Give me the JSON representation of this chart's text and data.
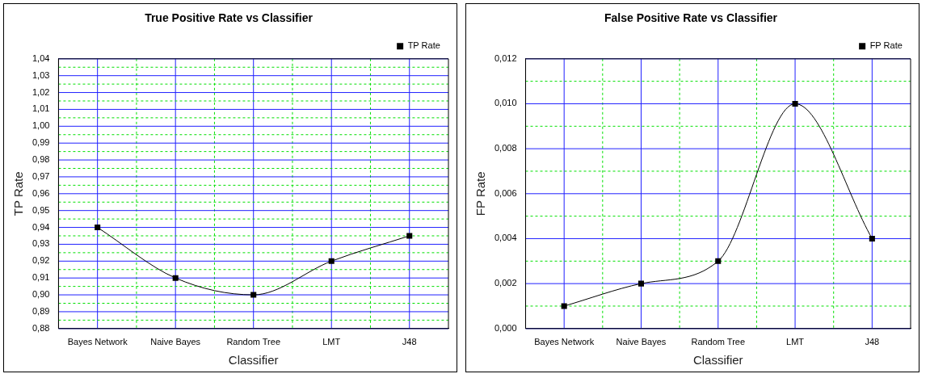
{
  "chart_data": [
    {
      "type": "line",
      "title": "True Positive Rate vs Classifier",
      "xlabel": "Classifier",
      "ylabel": "TP Rate",
      "categories": [
        "Bayes Network",
        "Naive Bayes",
        "Random Tree",
        "LMT",
        "J48"
      ],
      "series": [
        {
          "name": "TP Rate",
          "color": "#000000",
          "values": [
            0.94,
            0.91,
            0.9,
            0.92,
            0.935
          ]
        }
      ],
      "ylim": [
        0.88,
        1.04
      ],
      "yticks": [
        {
          "value": 0.88,
          "label": "0,88"
        },
        {
          "value": 0.89,
          "label": "0,89"
        },
        {
          "value": 0.9,
          "label": "0,90"
        },
        {
          "value": 0.91,
          "label": "0,91"
        },
        {
          "value": 0.92,
          "label": "0,92"
        },
        {
          "value": 0.93,
          "label": "0,93"
        },
        {
          "value": 0.94,
          "label": "0,94"
        },
        {
          "value": 0.95,
          "label": "0,95"
        },
        {
          "value": 0.96,
          "label": "0,96"
        },
        {
          "value": 0.97,
          "label": "0,97"
        },
        {
          "value": 0.98,
          "label": "0,98"
        },
        {
          "value": 0.99,
          "label": "0,99"
        },
        {
          "value": 1.0,
          "label": "1,00"
        },
        {
          "value": 1.01,
          "label": "1,01"
        },
        {
          "value": 1.02,
          "label": "1,02"
        },
        {
          "value": 1.03,
          "label": "1,03"
        },
        {
          "value": 1.04,
          "label": "1,04"
        }
      ],
      "grid": true,
      "legend": "top right",
      "marker": "square",
      "line_style": "solid"
    },
    {
      "type": "line",
      "title": "False Positive Rate vs Classifier",
      "xlabel": "Classifier",
      "ylabel": "FP Rate",
      "categories": [
        "Bayes Network",
        "Naive Bayes",
        "Random Tree",
        "LMT",
        "J48"
      ],
      "series": [
        {
          "name": "FP Rate",
          "color": "#000000",
          "values": [
            0.001,
            0.002,
            0.003,
            0.01,
            0.004
          ]
        }
      ],
      "ylim": [
        0,
        0.012
      ],
      "yticks": [
        {
          "value": 0,
          "label": "0,000"
        },
        {
          "value": 0.002,
          "label": "0,002"
        },
        {
          "value": 0.004,
          "label": "0,004"
        },
        {
          "value": 0.006,
          "label": "0,006"
        },
        {
          "value": 0.008,
          "label": "0,008"
        },
        {
          "value": 0.01,
          "label": "0,010"
        },
        {
          "value": 0.012,
          "label": "0,012"
        }
      ],
      "grid": true,
      "legend": "top right",
      "marker": "square",
      "line_style": "solid"
    }
  ]
}
